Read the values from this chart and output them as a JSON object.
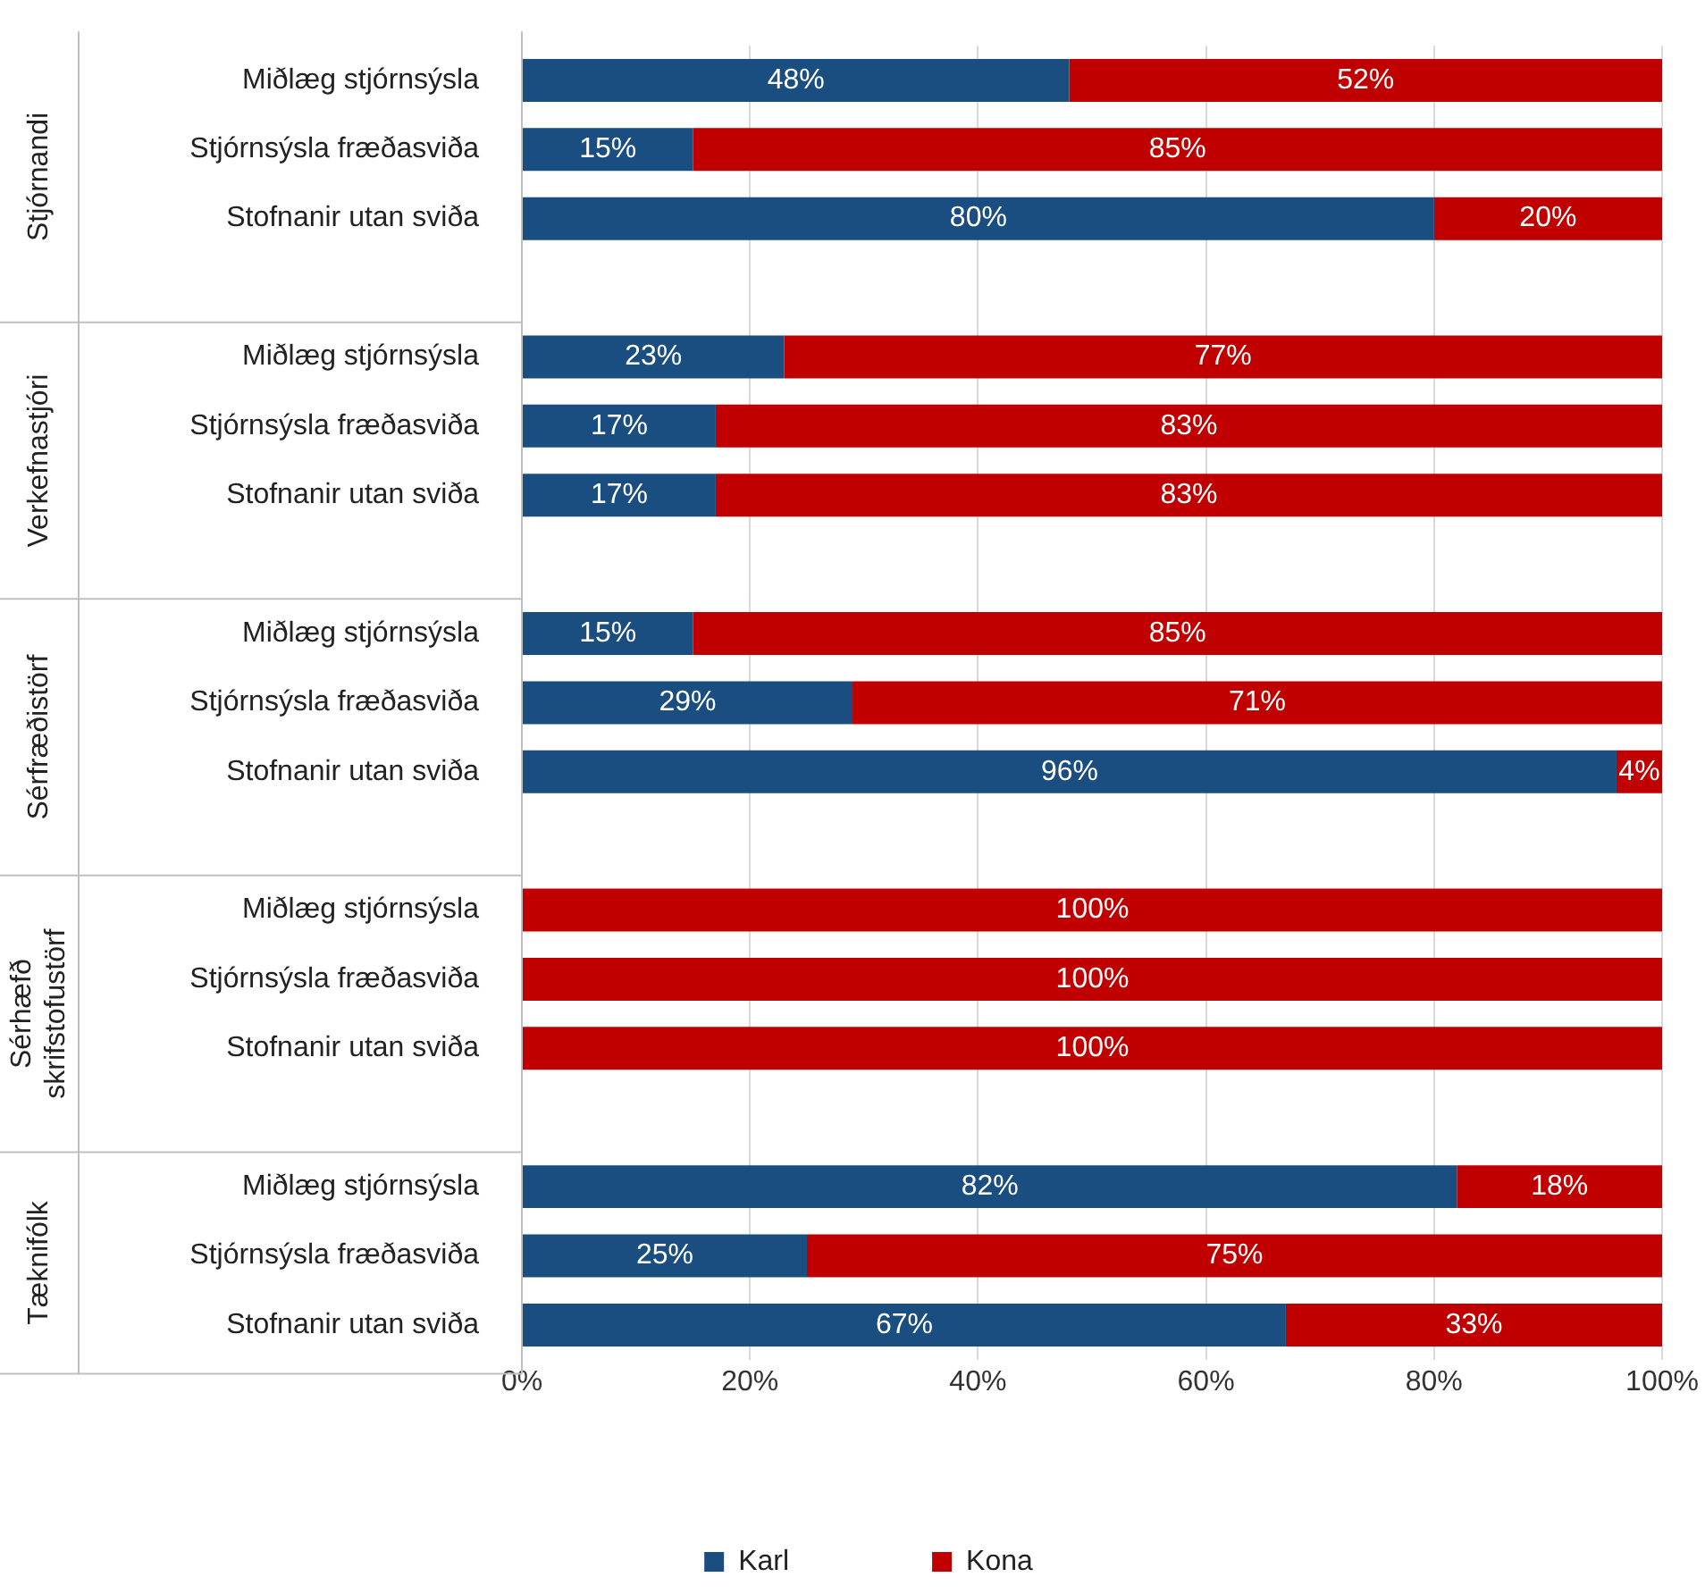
{
  "chart_data": {
    "type": "bar",
    "orientation": "horizontal",
    "stacked": true,
    "categories": [
      "Miðlæg stjórnsýsla",
      "Stjórnsýsla fræðasviða",
      "Stofnanir utan sviða",
      null,
      "Miðlæg stjórnsýsla",
      "Stjórnsýsla fræðasviða",
      "Stofnanir utan sviða",
      null,
      "Miðlæg stjórnsýsla",
      "Stjórnsýsla fræðasviða",
      "Stofnanir utan sviða",
      null,
      "Miðlæg stjórnsýsla",
      "Stjórnsýsla fræðasviða",
      "Stofnanir utan sviða",
      null,
      "Miðlæg stjórnsýsla",
      "Stjórnsýsla fræðasviða",
      "Stofnanir utan sviða"
    ],
    "series": [
      {
        "name": "Karl",
        "color": "#1a4e80",
        "values": [
          48,
          15,
          80,
          null,
          23,
          17,
          17,
          null,
          15,
          29,
          96,
          null,
          0,
          0,
          0,
          null,
          82,
          25,
          67
        ],
        "value_labels": [
          "48%",
          "15%",
          "80%",
          null,
          "23%",
          "17%",
          "17%",
          null,
          "15%",
          "29%",
          "96%",
          null,
          null,
          null,
          null,
          null,
          "82%",
          "25%",
          "67%"
        ]
      },
      {
        "name": "Kona",
        "color": "#c00000",
        "values": [
          52,
          85,
          20,
          null,
          77,
          83,
          83,
          null,
          85,
          71,
          4,
          null,
          100,
          100,
          100,
          null,
          18,
          75,
          33
        ],
        "value_labels": [
          "52%",
          "85%",
          "20%",
          null,
          "77%",
          "83%",
          "83%",
          null,
          "85%",
          "71%",
          "4%",
          null,
          "100%",
          "100%",
          "100%",
          null,
          "18%",
          "75%",
          "33%"
        ]
      }
    ],
    "xlim": [
      0,
      100
    ],
    "xticks": [
      {
        "value": 0,
        "label": "0%"
      },
      {
        "value": 20,
        "label": "20%"
      },
      {
        "value": 40,
        "label": "40%"
      },
      {
        "value": 60,
        "label": "60%"
      },
      {
        "value": 80,
        "label": "80%"
      },
      {
        "value": 100,
        "label": "100%"
      }
    ],
    "grid": "x",
    "legend": "bottom",
    "annotations": [
      "Stjórnandi",
      "Verkefnastjóri",
      "Sérfræðistörf",
      "Sérhæfð skrifstofustörf",
      "Tæknifólk"
    ]
  }
}
